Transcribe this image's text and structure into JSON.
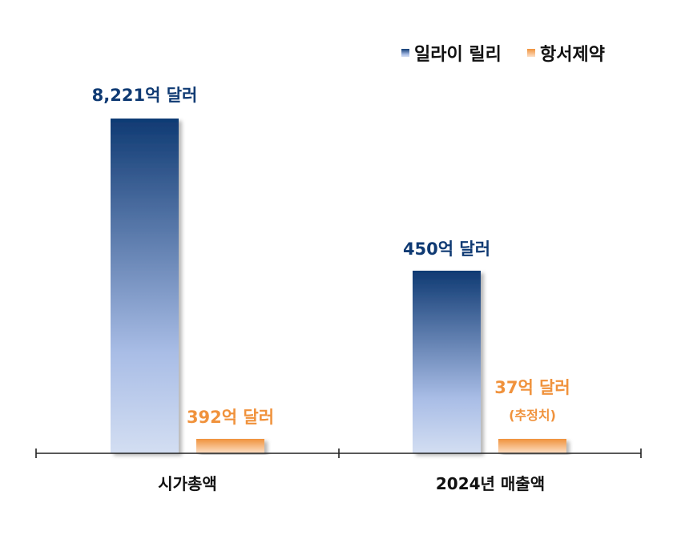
{
  "chart_data": {
    "type": "bar",
    "categories": [
      "시가총액",
      "2024년 매출액"
    ],
    "series": [
      {
        "name": "일라이 릴리",
        "values": [
          8221,
          450
        ],
        "value_labels": [
          "8,221억 달러",
          "450억 달러"
        ],
        "color_top": "#0f3a73",
        "color_bottom": "#d3def2",
        "label_color": "#0f3a73"
      },
      {
        "name": "항서제약",
        "values": [
          392,
          37
        ],
        "value_labels": [
          "392억 달러",
          "37억 달러"
        ],
        "notes": [
          "",
          "(추정치)"
        ],
        "color_top": "#f0923c",
        "color_bottom": "#fde0c6",
        "label_color": "#f0923c"
      }
    ],
    "unit": "억 달러",
    "axis_scale": "not-proportional",
    "grid": false,
    "legend_position": "top-right"
  }
}
